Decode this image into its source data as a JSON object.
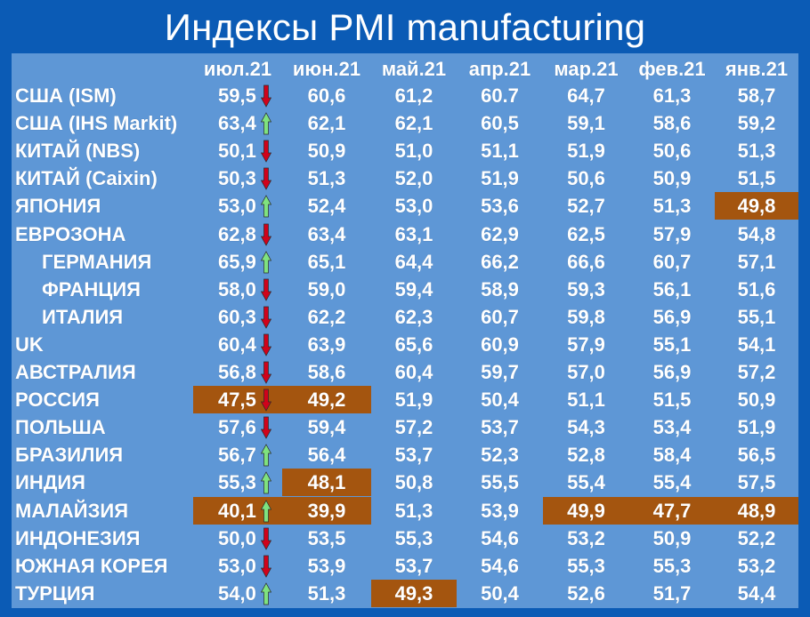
{
  "title": "Индексы PMI manufacturing",
  "colors": {
    "background": "#0b5bb5",
    "table": "#5e97d6",
    "highlight_below_50": "#a4550f",
    "arrow_down": "#d0021b",
    "arrow_up": "#7fe27f"
  },
  "chart_data": {
    "type": "table",
    "title": "Индексы PMI manufacturing",
    "columns": [
      "июл.21",
      "июн.21",
      "май.21",
      "апр.21",
      "мар.21",
      "фев.21",
      "янв.21"
    ],
    "rows": [
      {
        "label": "США (ISM)",
        "indent": false,
        "values": [
          "59,5",
          "60,6",
          "61,2",
          "60.7",
          "64,7",
          "61,3",
          "58,7"
        ],
        "trend": "down",
        "highlight": []
      },
      {
        "label": "США (IHS Markit)",
        "indent": false,
        "values": [
          "63,4",
          "62,1",
          "62,1",
          "60,5",
          "59,1",
          "58,6",
          "59,2"
        ],
        "trend": "up",
        "highlight": []
      },
      {
        "label": "КИТАЙ (NBS)",
        "indent": false,
        "values": [
          "50,1",
          "50,9",
          "51,0",
          "51,1",
          "51,9",
          "50,6",
          "51,3"
        ],
        "trend": "down",
        "highlight": []
      },
      {
        "label": "КИТАЙ (Caixin)",
        "indent": false,
        "values": [
          "50,3",
          "51,3",
          "52,0",
          "51,9",
          "50,6",
          "50,9",
          "51,5"
        ],
        "trend": "down",
        "highlight": []
      },
      {
        "label": "ЯПОНИЯ",
        "indent": false,
        "values": [
          "53,0",
          "52,4",
          "53,0",
          "53,6",
          "52,7",
          "51,3",
          "49,8"
        ],
        "trend": "up",
        "highlight": [
          6
        ]
      },
      {
        "label": "ЕВРОЗОНА",
        "indent": false,
        "values": [
          "62,8",
          "63,4",
          "63,1",
          "62,9",
          "62,5",
          "57,9",
          "54,8"
        ],
        "trend": "down",
        "highlight": []
      },
      {
        "label": "ГЕРМАНИЯ",
        "indent": true,
        "values": [
          "65,9",
          "65,1",
          "64,4",
          "66,2",
          "66,6",
          "60,7",
          "57,1"
        ],
        "trend": "up",
        "highlight": []
      },
      {
        "label": "ФРАНЦИЯ",
        "indent": true,
        "values": [
          "58,0",
          "59,0",
          "59,4",
          "58,9",
          "59,3",
          "56,1",
          "51,6"
        ],
        "trend": "down",
        "highlight": []
      },
      {
        "label": "ИТАЛИЯ",
        "indent": true,
        "values": [
          "60,3",
          "62,2",
          "62,3",
          "60,7",
          "59,8",
          "56,9",
          "55,1"
        ],
        "trend": "down",
        "highlight": []
      },
      {
        "label": "UK",
        "indent": false,
        "values": [
          "60,4",
          "63,9",
          "65,6",
          "60,9",
          "57,9",
          "55,1",
          "54,1"
        ],
        "trend": "down",
        "highlight": []
      },
      {
        "label": "АВСТРАЛИЯ",
        "indent": false,
        "values": [
          "56,8",
          "58,6",
          "60,4",
          "59,7",
          "57,0",
          "56,9",
          "57,2"
        ],
        "trend": "down",
        "highlight": []
      },
      {
        "label": "РОССИЯ",
        "indent": false,
        "values": [
          "47,5",
          "49,2",
          "51,9",
          "50,4",
          "51,1",
          "51,5",
          "50,9"
        ],
        "trend": "down",
        "highlight": [
          0,
          1
        ]
      },
      {
        "label": "ПОЛЬША",
        "indent": false,
        "values": [
          "57,6",
          "59,4",
          "57,2",
          "53,7",
          "54,3",
          "53,4",
          "51,9"
        ],
        "trend": "down",
        "highlight": []
      },
      {
        "label": "БРАЗИЛИЯ",
        "indent": false,
        "values": [
          "56,7",
          "56,4",
          "53,7",
          "52,3",
          "52,8",
          "58,4",
          "56,5"
        ],
        "trend": "up",
        "highlight": []
      },
      {
        "label": "ИНДИЯ",
        "indent": false,
        "values": [
          "55,3",
          "48,1",
          "50,8",
          "55,5",
          "55,4",
          "55,4",
          "57,5"
        ],
        "trend": "up",
        "highlight": [
          1
        ]
      },
      {
        "label": "МАЛАЙЗИЯ",
        "indent": false,
        "values": [
          "40,1",
          "39,9",
          "51,3",
          "53,9",
          "49,9",
          "47,7",
          "48,9"
        ],
        "trend": "up",
        "highlight": [
          0,
          1,
          4,
          5,
          6
        ]
      },
      {
        "label": "ИНДОНЕЗИЯ",
        "indent": false,
        "values": [
          "50,0",
          "53,5",
          "55,3",
          "54,6",
          "53,2",
          "50,9",
          "52,2"
        ],
        "trend": "down",
        "highlight": []
      },
      {
        "label": "ЮЖНАЯ КОРЕЯ",
        "indent": false,
        "values": [
          "53,0",
          "53,9",
          "53,7",
          "54,6",
          "55,3",
          "55,3",
          "53,2"
        ],
        "trend": "down",
        "highlight": []
      },
      {
        "label": "ТУРЦИЯ",
        "indent": false,
        "values": [
          "54,0",
          "51,3",
          "49,3",
          "50,4",
          "52,6",
          "51,7",
          "54,4"
        ],
        "trend": "up",
        "highlight": [
          2
        ]
      }
    ]
  }
}
